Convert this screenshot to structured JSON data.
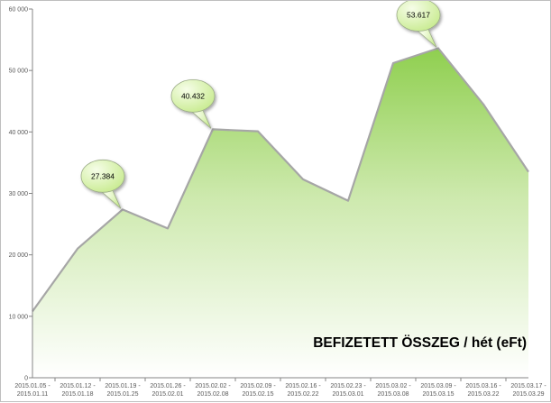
{
  "chart_data": {
    "type": "area",
    "title": "BEFIZETETT ÖSSZEG / hét (eFt)",
    "xlabel": "",
    "ylabel": "",
    "ylim": [
      0,
      60000
    ],
    "y_ticks": [
      0,
      10000,
      20000,
      30000,
      40000,
      50000,
      60000
    ],
    "y_tick_labels": [
      "0",
      "10 000",
      "20 000",
      "30 000",
      "40 000",
      "50 000",
      "60 000"
    ],
    "grid": false,
    "legend": "none",
    "categories": [
      [
        "2015.01.05 -",
        "2015.01.11"
      ],
      [
        "2015.01.12 -",
        "2015.01.18"
      ],
      [
        "2015.01.19 -",
        "2015.01.25"
      ],
      [
        "2015.01.26 -",
        "2015.02.01"
      ],
      [
        "2015.02.02 -",
        "2015.02.08"
      ],
      [
        "2015.02.09 -",
        "2015.02.15"
      ],
      [
        "2015.02.16 -",
        "2015.02.22"
      ],
      [
        "2015.02.23 -",
        "2015.03.01"
      ],
      [
        "2015.03.02 -",
        "2015.03.08"
      ],
      [
        "2015.03.09 -",
        "2015.03.15"
      ],
      [
        "2015.03.16 -",
        "2015.03.22"
      ],
      [
        "2015.03.17 -",
        "2015.03.29"
      ]
    ],
    "series": [
      {
        "values": [
          10800,
          21000,
          27384,
          24300,
          40432,
          40100,
          32300,
          28800,
          51200,
          53617,
          44500,
          33500
        ]
      }
    ],
    "annotations": [
      {
        "label": "27.384",
        "index": 2
      },
      {
        "label": "40.432",
        "index": 4
      },
      {
        "label": "53.617",
        "index": 9
      }
    ],
    "colors": {
      "fill_top": "#8fcf4f",
      "fill_bottom": "#ffffff",
      "line": "#a6a6a6",
      "bubble_light": "#f6fde8",
      "bubble_dark": "#c6ea8c",
      "bubble_stroke": "#9aaa86"
    }
  }
}
